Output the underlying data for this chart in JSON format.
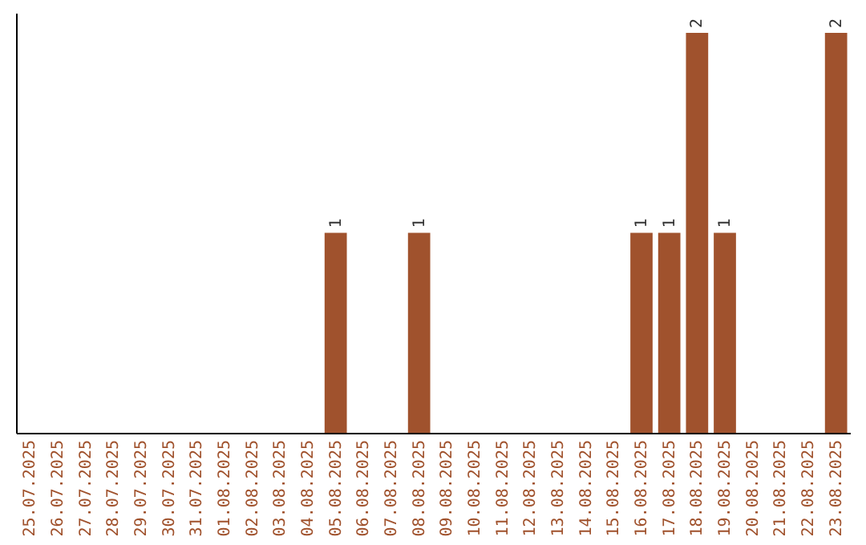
{
  "chart_data": {
    "type": "bar",
    "categories": [
      "25.07.2025",
      "26.07.2025",
      "27.07.2025",
      "28.07.2025",
      "29.07.2025",
      "30.07.2025",
      "31.07.2025",
      "01.08.2025",
      "02.08.2025",
      "03.08.2025",
      "04.08.2025",
      "05.08.2025",
      "06.08.2025",
      "07.08.2025",
      "08.08.2025",
      "09.08.2025",
      "10.08.2025",
      "11.08.2025",
      "12.08.2025",
      "13.08.2025",
      "14.08.2025",
      "15.08.2025",
      "16.08.2025",
      "17.08.2025",
      "18.08.2025",
      "19.08.2025",
      "20.08.2025",
      "21.08.2025",
      "22.08.2025",
      "23.08.2025"
    ],
    "values": [
      0,
      0,
      0,
      0,
      0,
      0,
      0,
      0,
      0,
      0,
      0,
      1,
      0,
      0,
      1,
      0,
      0,
      0,
      0,
      0,
      0,
      0,
      1,
      1,
      2,
      1,
      0,
      0,
      0,
      2
    ],
    "value_labels": [
      null,
      null,
      null,
      null,
      null,
      null,
      null,
      null,
      null,
      null,
      null,
      "1",
      null,
      null,
      "1",
      null,
      null,
      null,
      null,
      null,
      null,
      null,
      "1",
      "1",
      "2",
      "1",
      null,
      null,
      null,
      "2"
    ],
    "color": "#a0522d",
    "ylim": [
      0,
      2.1
    ],
    "tick_labels": "x",
    "grid": false
  }
}
